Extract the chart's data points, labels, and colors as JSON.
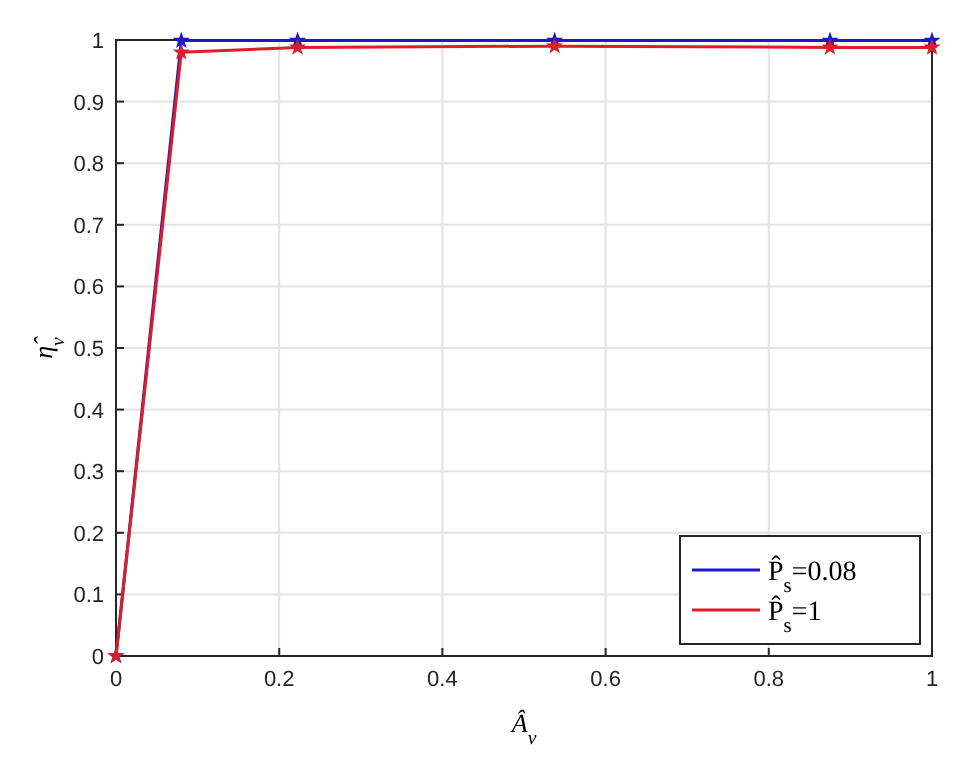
{
  "chart_data": {
    "type": "line",
    "xlabel": "Â$_{v}$",
    "ylabel": "η̂$_{v}$",
    "xlim": [
      0,
      1
    ],
    "ylim": [
      0,
      1
    ],
    "xticks": [
      0,
      0.2,
      0.4,
      0.6,
      0.8,
      1
    ],
    "yticks": [
      0,
      0.1,
      0.2,
      0.3,
      0.4,
      0.5,
      0.6,
      0.7,
      0.8,
      0.9,
      1
    ],
    "x": [
      0,
      0.08,
      0.2225,
      0.5375,
      0.875,
      1
    ],
    "series": [
      {
        "name": "P̂$_{s}$=0.08",
        "color": "#1a1acc",
        "values": [
          0,
          0.999,
          0.999,
          0.999,
          0.999,
          0.999
        ]
      },
      {
        "name": "P̂$_{s}$=1",
        "color": "#d9202a",
        "values": [
          0,
          0.98,
          0.988,
          0.99,
          0.988,
          0.988
        ]
      }
    ],
    "grid": true,
    "legend": "bottom right",
    "marker": "star",
    "line_style": "solid"
  }
}
